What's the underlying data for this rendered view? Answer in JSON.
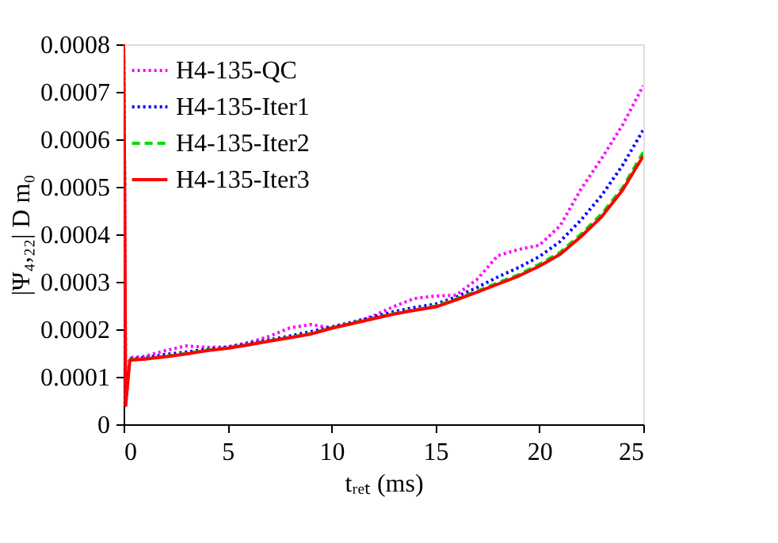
{
  "chart_data": {
    "type": "line",
    "xlabel": "tᵣₑₜ (ms)",
    "ylabel": "|Ψ₄,₂₂| D m₀",
    "xlim": [
      0,
      25
    ],
    "xticks": [
      0,
      5,
      10,
      15,
      20,
      25
    ],
    "ylim": [
      0,
      0.0008
    ],
    "yticks": [
      0,
      0.0001,
      0.0002,
      0.0003,
      0.0004,
      0.0005,
      0.0006,
      0.0007,
      0.0008
    ],
    "grid": false,
    "legend": "top left",
    "marker": "none",
    "x": [
      0,
      0.05,
      0.1,
      0.3,
      1,
      2,
      3,
      4,
      5,
      6,
      7,
      8,
      9,
      10,
      11,
      12,
      13,
      14,
      15,
      16,
      17,
      18,
      19,
      20,
      21,
      22,
      23,
      24,
      25
    ],
    "series": [
      {
        "name": "H4-135-QC",
        "color": "#ff00ff",
        "line_style": "dotted",
        "values": [
          0.0008,
          0.0005,
          4e-05,
          0.00014,
          0.000143,
          0.000155,
          0.000165,
          0.000162,
          0.000163,
          0.000172,
          0.000185,
          0.000203,
          0.00021,
          0.000203,
          0.000212,
          0.000228,
          0.000248,
          0.000265,
          0.00027,
          0.000272,
          0.000305,
          0.000355,
          0.000368,
          0.000377,
          0.000418,
          0.000495,
          0.00056,
          0.00063,
          0.000713
        ]
      },
      {
        "name": "H4-135-Iter1",
        "color": "#0000ff",
        "line_style": "dotted",
        "values": [
          0.0008,
          0.0005,
          null,
          0.000138,
          0.00014,
          0.000147,
          0.000152,
          0.000158,
          0.000162,
          0.00017,
          0.000178,
          0.000186,
          0.000195,
          0.000205,
          0.000215,
          0.000226,
          0.000237,
          0.000246,
          0.000253,
          0.000268,
          0.000288,
          0.00031,
          0.00033,
          0.000353,
          0.000385,
          0.00043,
          0.000482,
          0.000545,
          0.00062
        ]
      },
      {
        "name": "H4-135-Iter2",
        "color": "#00dd00",
        "line_style": "dashed",
        "values": [
          0.0008,
          0.0005,
          null,
          0.000136,
          0.000138,
          0.000143,
          0.000149,
          0.000156,
          0.000161,
          0.000168,
          0.000176,
          0.000183,
          0.000191,
          0.000203,
          0.000213,
          0.000223,
          0.000233,
          0.000241,
          0.000249,
          0.000264,
          0.00028,
          0.000298,
          0.000315,
          0.000337,
          0.000362,
          0.0004,
          0.000443,
          0.000498,
          0.000573
        ]
      },
      {
        "name": "H4-135-Iter3",
        "color": "#ff0000",
        "line_style": "solid",
        "values": [
          0.0008,
          0.0005,
          4e-05,
          0.000135,
          0.000137,
          0.000142,
          0.000148,
          0.000155,
          0.00016,
          0.000167,
          0.000175,
          0.000182,
          0.00019,
          0.000202,
          0.000212,
          0.000222,
          0.000232,
          0.00024,
          0.000247,
          0.000262,
          0.000278,
          0.000295,
          0.000312,
          0.000333,
          0.000358,
          0.000395,
          0.000437,
          0.000493,
          0.000565
        ]
      }
    ]
  }
}
